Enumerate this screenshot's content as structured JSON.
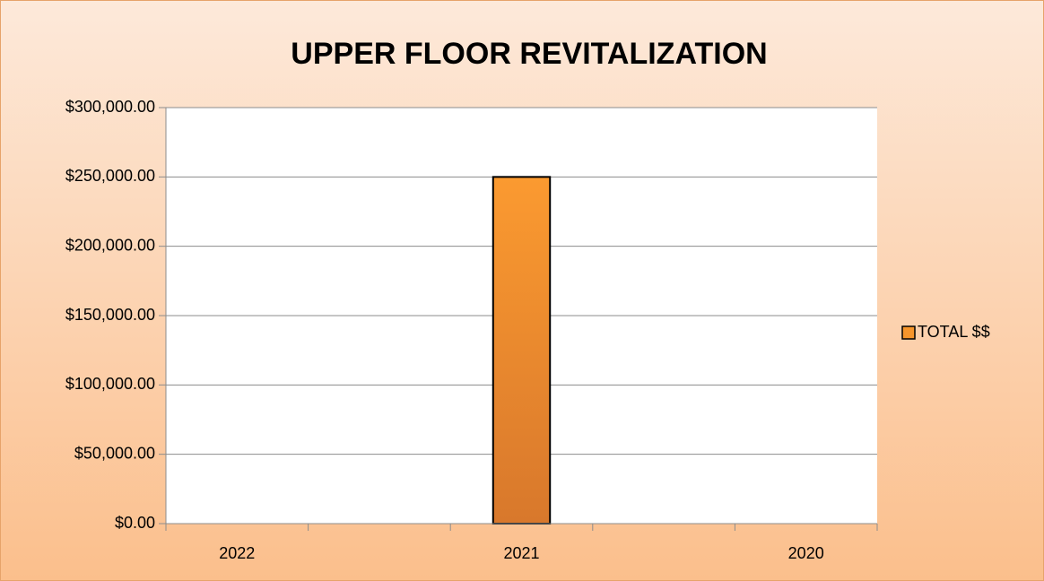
{
  "chart_data": {
    "type": "bar",
    "title": "UPPER FLOOR REVITALIZATION",
    "categories": [
      "2022",
      null,
      "2021",
      null,
      "2020"
    ],
    "series": [
      {
        "name": "TOTAL $$",
        "color": "#f7962c",
        "values": [
          0,
          0,
          250000,
          0,
          0
        ]
      }
    ],
    "ylim": [
      0,
      300000
    ],
    "yticks": [
      {
        "value": 0,
        "label": "$0.00"
      },
      {
        "value": 50000,
        "label": "$50,000.00"
      },
      {
        "value": 100000,
        "label": "$100,000.00"
      },
      {
        "value": 150000,
        "label": "$150,000.00"
      },
      {
        "value": 200000,
        "label": "$200,000.00"
      },
      {
        "value": 250000,
        "label": "$250,000.00"
      },
      {
        "value": 300000,
        "label": "$300,000.00"
      }
    ],
    "grid": true,
    "legend": "right"
  }
}
